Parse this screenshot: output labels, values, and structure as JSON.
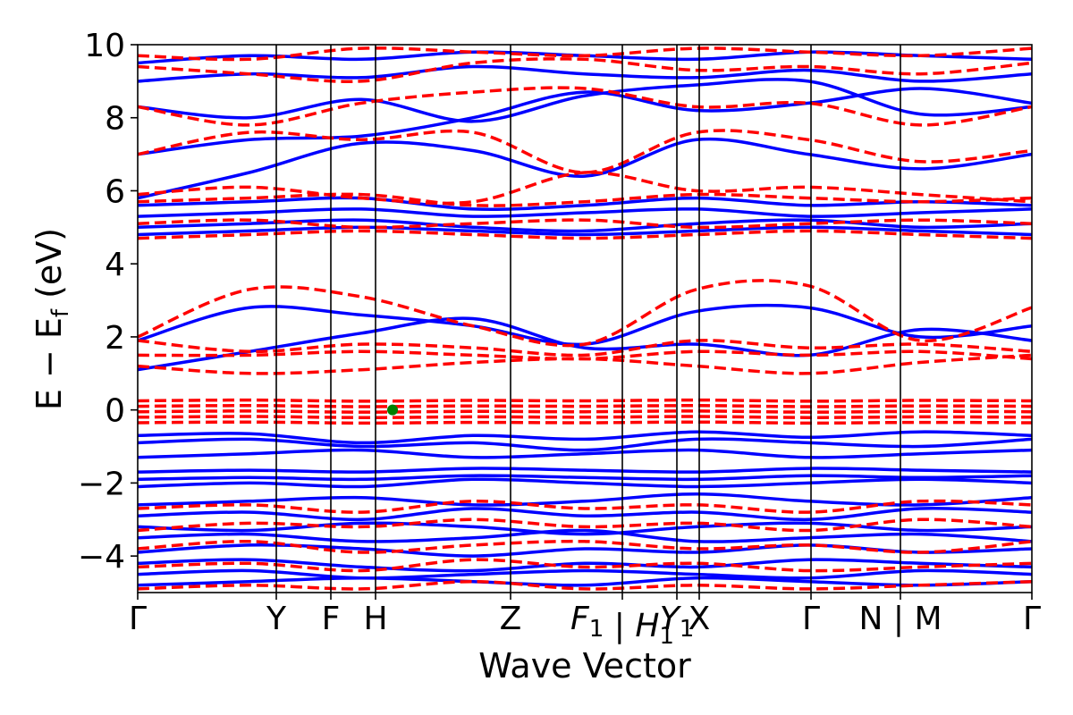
{
  "chart_data": {
    "type": "line",
    "title": "",
    "xlabel": "Wave Vector",
    "ylabel": "E − E",
    "ylabel_sub": "f",
    "ylabel_unit": " (eV)",
    "ylim": [
      -5,
      10
    ],
    "yticks": [
      -4,
      -2,
      0,
      2,
      4,
      6,
      8,
      10
    ],
    "ytick_labels": [
      "−4",
      "−2",
      "0",
      "2",
      "4",
      "6",
      "8",
      "10"
    ],
    "xlim": [
      0,
      10
    ],
    "kpoints": [
      {
        "label": "Γ",
        "x": 0.0
      },
      {
        "label": "Y",
        "x": 1.55
      },
      {
        "label": "F",
        "x": 2.16
      },
      {
        "label": "H",
        "x": 2.66
      },
      {
        "label": "Z",
        "x": 4.17
      },
      {
        "label": "F",
        "sub": "1",
        "x": 5.42,
        "italic": true,
        "break_after": true
      },
      {
        "label": "H",
        "sub": "1",
        "x": 5.42,
        "italic": true
      },
      {
        "label": "Y",
        "sub": "1",
        "x": 6.03,
        "italic": true
      },
      {
        "label": "X",
        "x": 6.28
      },
      {
        "label": "Γ",
        "x": 7.53
      },
      {
        "label": "N",
        "x": 8.53,
        "break_after": true
      },
      {
        "label": "M",
        "x": 8.53
      },
      {
        "label": "Γ",
        "x": 10.0
      }
    ],
    "tick_text": [
      "Γ",
      "Y",
      "F",
      "H",
      "Z",
      "F",
      "1",
      "|",
      "H",
      "Y",
      "1",
      "1",
      "X",
      "Γ",
      "N",
      "|",
      "M",
      "Γ"
    ],
    "series": [
      {
        "style": "solid",
        "color": "#0000ff",
        "bands": [
          [
            -4.8,
            -4.7,
            -4.6,
            -4.7,
            -4.8,
            -4.6,
            -4.7,
            -4.8,
            -4.7
          ],
          [
            -4.5,
            -4.4,
            -4.6,
            -4.5,
            -4.4,
            -4.5,
            -4.6,
            -4.4,
            -4.5
          ],
          [
            -4.2,
            -4.1,
            -4.3,
            -4.4,
            -4.2,
            -4.3,
            -4.1,
            -4.2,
            -4.3
          ],
          [
            -3.9,
            -3.7,
            -3.8,
            -4.0,
            -3.8,
            -3.9,
            -3.7,
            -3.9,
            -3.8
          ],
          [
            -3.5,
            -3.4,
            -3.6,
            -3.5,
            -3.3,
            -3.6,
            -3.5,
            -3.4,
            -3.6
          ],
          [
            -3.2,
            -3.3,
            -3.1,
            -3.2,
            -3.4,
            -3.2,
            -3.1,
            -3.3,
            -3.2
          ],
          [
            -2.9,
            -2.8,
            -3.0,
            -2.7,
            -2.9,
            -2.8,
            -3.0,
            -2.7,
            -2.8
          ],
          [
            -2.6,
            -2.5,
            -2.4,
            -2.6,
            -2.5,
            -2.3,
            -2.5,
            -2.6,
            -2.4
          ],
          [
            -2.1,
            -2.0,
            -2.1,
            -1.9,
            -2.0,
            -2.1,
            -2.0,
            -1.9,
            -2.0
          ],
          [
            -1.9,
            -1.85,
            -1.9,
            -1.8,
            -1.85,
            -1.9,
            -1.8,
            -1.85,
            -1.8
          ],
          [
            -1.7,
            -1.65,
            -1.7,
            -1.6,
            -1.65,
            -1.7,
            -1.6,
            -1.65,
            -1.7
          ],
          [
            -1.3,
            -1.2,
            -1.1,
            -1.3,
            -1.2,
            -1.1,
            -1.3,
            -1.2,
            -1.1
          ],
          [
            -0.9,
            -0.8,
            -1.0,
            -0.9,
            -1.1,
            -0.8,
            -0.9,
            -1.0,
            -0.8
          ],
          [
            -0.7,
            -0.65,
            -0.9,
            -0.7,
            -0.8,
            -0.6,
            -0.75,
            -0.6,
            -0.7
          ],
          [
            1.1,
            1.6,
            2.1,
            2.5,
            1.7,
            1.8,
            1.5,
            2.2,
            1.9
          ],
          [
            1.9,
            2.8,
            2.6,
            2.3,
            1.8,
            2.7,
            2.8,
            2.0,
            2.3
          ],
          [
            4.8,
            4.9,
            5.0,
            4.9,
            4.8,
            4.9,
            5.0,
            4.9,
            4.8
          ],
          [
            5.0,
            5.1,
            5.2,
            5.0,
            4.9,
            5.1,
            5.2,
            5.0,
            5.1
          ],
          [
            5.3,
            5.4,
            5.5,
            5.3,
            5.4,
            5.5,
            5.3,
            5.4,
            5.5
          ],
          [
            5.6,
            5.7,
            5.8,
            5.5,
            5.6,
            5.8,
            5.6,
            5.7,
            5.6
          ],
          [
            5.8,
            6.5,
            7.3,
            7.1,
            6.4,
            7.4,
            7.0,
            6.6,
            7.0
          ],
          [
            7.0,
            7.4,
            7.5,
            8.0,
            8.7,
            8.2,
            8.4,
            8.8,
            8.4
          ],
          [
            8.3,
            8.0,
            8.5,
            7.9,
            8.6,
            8.9,
            9.0,
            8.1,
            8.3
          ],
          [
            9.0,
            9.2,
            9.1,
            9.4,
            9.2,
            9.1,
            9.3,
            9.0,
            9.2
          ],
          [
            9.5,
            9.7,
            9.6,
            9.8,
            9.7,
            9.6,
            9.8,
            9.7,
            9.6
          ]
        ]
      },
      {
        "style": "dashed",
        "color": "#ff0000",
        "bands": [
          [
            -4.9,
            -4.8,
            -4.9,
            -4.7,
            -4.9,
            -4.8,
            -4.9,
            -4.8,
            -4.7
          ],
          [
            -4.3,
            -4.2,
            -4.4,
            -4.1,
            -4.3,
            -4.2,
            -4.4,
            -4.3,
            -4.2
          ],
          [
            -3.8,
            -3.6,
            -3.9,
            -3.7,
            -3.6,
            -3.8,
            -3.7,
            -3.9,
            -3.6
          ],
          [
            -3.3,
            -3.1,
            -3.2,
            -3.0,
            -3.2,
            -3.1,
            -3.3,
            -3.0,
            -3.2
          ],
          [
            -2.7,
            -2.6,
            -2.8,
            -2.5,
            -2.7,
            -2.6,
            -2.8,
            -2.5,
            -2.6
          ],
          [
            -0.35,
            -0.33,
            -0.36,
            -0.34,
            -0.35,
            -0.33,
            -0.36,
            -0.34,
            -0.35
          ],
          [
            -0.2,
            -0.18,
            -0.21,
            -0.19,
            -0.2,
            -0.18,
            -0.21,
            -0.19,
            -0.2
          ],
          [
            -0.05,
            -0.03,
            -0.06,
            -0.04,
            -0.05,
            -0.03,
            -0.06,
            -0.04,
            -0.05
          ],
          [
            0.1,
            0.12,
            0.09,
            0.11,
            0.1,
            0.12,
            0.09,
            0.11,
            0.1
          ],
          [
            0.25,
            0.27,
            0.24,
            0.26,
            0.25,
            0.27,
            0.24,
            0.26,
            0.25
          ],
          [
            1.2,
            1.0,
            1.1,
            1.3,
            1.4,
            1.2,
            1.0,
            1.3,
            1.5
          ],
          [
            1.5,
            1.5,
            1.6,
            1.5,
            1.4,
            1.6,
            1.5,
            1.6,
            1.4
          ],
          [
            1.9,
            1.6,
            1.8,
            1.7,
            1.5,
            1.9,
            1.7,
            1.8,
            1.6
          ],
          [
            2.0,
            3.3,
            3.1,
            2.3,
            1.8,
            3.3,
            3.4,
            1.9,
            2.8
          ],
          [
            4.7,
            4.8,
            4.9,
            4.8,
            4.7,
            4.8,
            4.9,
            4.8,
            4.7
          ],
          [
            5.1,
            5.2,
            5.0,
            5.1,
            5.2,
            5.0,
            5.1,
            5.2,
            5.1
          ],
          [
            5.7,
            5.8,
            5.9,
            5.6,
            5.7,
            5.9,
            5.8,
            5.7,
            5.8
          ],
          [
            5.9,
            6.1,
            5.8,
            5.7,
            6.5,
            6.0,
            6.1,
            5.9,
            5.7
          ],
          [
            7.0,
            7.6,
            7.4,
            7.6,
            6.5,
            7.6,
            7.4,
            6.8,
            7.1
          ],
          [
            8.3,
            7.8,
            8.4,
            8.7,
            8.8,
            8.3,
            8.4,
            7.8,
            8.3
          ],
          [
            9.4,
            9.2,
            9.0,
            9.5,
            9.6,
            9.3,
            9.4,
            9.2,
            9.5
          ],
          [
            9.7,
            9.6,
            9.9,
            9.8,
            9.7,
            9.9,
            9.8,
            9.7,
            9.9
          ]
        ]
      }
    ],
    "fermi_point": {
      "x": 2.85,
      "y": 0.0,
      "color": "#008000"
    },
    "grid": false,
    "legend": "none"
  }
}
